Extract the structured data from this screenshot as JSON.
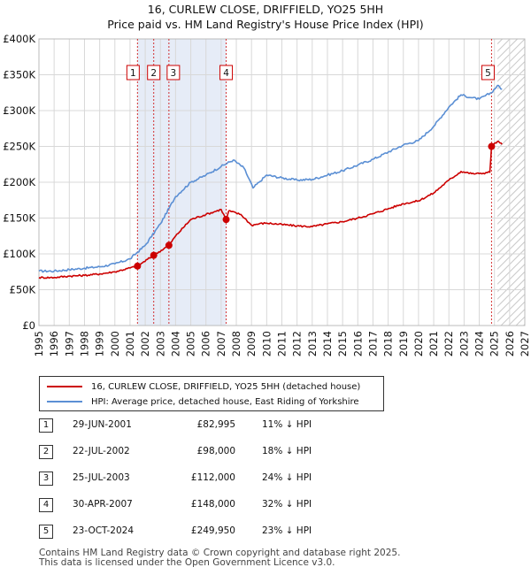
{
  "title_line1": "16, CURLEW CLOSE, DRIFFIELD, YO25 5HH",
  "title_line2": "Price paid vs. HM Land Registry's House Price Index (HPI)",
  "legend": {
    "red_label": "16, CURLEW CLOSE, DRIFFIELD, YO25 5HH (detached house)",
    "blue_label": "HPI: Average price, detached house, East Riding of Yorkshire"
  },
  "colors": {
    "red": "#cc0000",
    "blue": "#5b8fd4",
    "band": "#e6ecf7",
    "hatch": "#c8c8c8",
    "grid": "#d8d8d8"
  },
  "sales": [
    {
      "num": "1",
      "date": "29-JUN-2001",
      "price": "£82,995",
      "pct": "11% ↓ HPI"
    },
    {
      "num": "2",
      "date": "22-JUL-2002",
      "price": "£98,000",
      "pct": "18% ↓ HPI"
    },
    {
      "num": "3",
      "date": "25-JUL-2003",
      "price": "£112,000",
      "pct": "24% ↓ HPI"
    },
    {
      "num": "4",
      "date": "30-APR-2007",
      "price": "£148,000",
      "pct": "32% ↓ HPI"
    },
    {
      "num": "5",
      "date": "23-OCT-2024",
      "price": "£249,950",
      "pct": "23% ↓ HPI"
    }
  ],
  "footer_line1": "Contains HM Land Registry data © Crown copyright and database right 2025.",
  "footer_line2": "This data is licensed under the Open Government Licence v3.0.",
  "chart_data": {
    "type": "line",
    "title": "16, CURLEW CLOSE, DRIFFIELD, YO25 5HH — Price paid vs. HM Land Registry's House Price Index (HPI)",
    "xlim": [
      1995,
      2027
    ],
    "ylim": [
      0,
      400000
    ],
    "x_ticks": [
      1995,
      1996,
      1997,
      1998,
      1999,
      2000,
      2001,
      2002,
      2003,
      2004,
      2005,
      2006,
      2007,
      2008,
      2009,
      2010,
      2011,
      2012,
      2013,
      2014,
      2015,
      2016,
      2017,
      2018,
      2019,
      2020,
      2021,
      2022,
      2023,
      2024,
      2025,
      2026,
      2027
    ],
    "y_ticks": [
      0,
      50000,
      100000,
      150000,
      200000,
      250000,
      300000,
      350000,
      400000
    ],
    "y_tick_labels": [
      "£0",
      "£50K",
      "£100K",
      "£150K",
      "£200K",
      "£250K",
      "£300K",
      "£350K",
      "£400K"
    ],
    "shaded_ranges": [
      [
        2001.49,
        2007.33
      ]
    ],
    "hatched_from": 2025.2,
    "sale_points": [
      {
        "label": "1",
        "x": 2001.49,
        "y": 82995
      },
      {
        "label": "2",
        "x": 2002.56,
        "y": 98000
      },
      {
        "label": "3",
        "x": 2003.56,
        "y": 112000
      },
      {
        "label": "4",
        "x": 2007.33,
        "y": 148000
      },
      {
        "label": "5",
        "x": 2024.81,
        "y": 249950
      }
    ],
    "series": [
      {
        "name": "HPI: Average price, detached house, East Riding of Yorkshire",
        "color": "#5b8fd4",
        "points": [
          [
            1995,
            76000
          ],
          [
            1996,
            76000
          ],
          [
            1997,
            78000
          ],
          [
            1998,
            80000
          ],
          [
            1999,
            82000
          ],
          [
            2000,
            86000
          ],
          [
            2001,
            93000
          ],
          [
            2002,
            112000
          ],
          [
            2003,
            142000
          ],
          [
            2004,
            180000
          ],
          [
            2005,
            200000
          ],
          [
            2006,
            210000
          ],
          [
            2007,
            222000
          ],
          [
            2007.8,
            231000
          ],
          [
            2008.5,
            220000
          ],
          [
            2009.1,
            192000
          ],
          [
            2009.5,
            200000
          ],
          [
            2010,
            210000
          ],
          [
            2011,
            206000
          ],
          [
            2012,
            203000
          ],
          [
            2013,
            204000
          ],
          [
            2014,
            210000
          ],
          [
            2015,
            216000
          ],
          [
            2016,
            224000
          ],
          [
            2017,
            232000
          ],
          [
            2018,
            242000
          ],
          [
            2019,
            252000
          ],
          [
            2020,
            258000
          ],
          [
            2021,
            278000
          ],
          [
            2022,
            305000
          ],
          [
            2022.8,
            322000
          ],
          [
            2023.5,
            318000
          ],
          [
            2024,
            316000
          ],
          [
            2024.8,
            325000
          ],
          [
            2025.2,
            335000
          ],
          [
            2025.5,
            330000
          ]
        ]
      },
      {
        "name": "16, CURLEW CLOSE, DRIFFIELD, YO25 5HH (detached house)",
        "color": "#cc0000",
        "points": [
          [
            1995,
            67000
          ],
          [
            1996,
            67000
          ],
          [
            1997,
            69000
          ],
          [
            1998,
            70000
          ],
          [
            1999,
            72000
          ],
          [
            2000,
            75000
          ],
          [
            2001.49,
            82995
          ],
          [
            2002.56,
            98000
          ],
          [
            2003.56,
            112000
          ],
          [
            2004,
            125000
          ],
          [
            2005,
            148000
          ],
          [
            2006,
            155000
          ],
          [
            2007,
            162000
          ],
          [
            2007.33,
            148000
          ],
          [
            2007.5,
            160000
          ],
          [
            2008.3,
            155000
          ],
          [
            2009,
            140000
          ],
          [
            2009.5,
            142000
          ],
          [
            2010,
            143000
          ],
          [
            2011,
            141000
          ],
          [
            2012,
            139000
          ],
          [
            2013,
            138000
          ],
          [
            2014,
            142000
          ],
          [
            2015,
            145000
          ],
          [
            2016,
            150000
          ],
          [
            2017,
            156000
          ],
          [
            2018,
            163000
          ],
          [
            2019,
            170000
          ],
          [
            2020,
            174000
          ],
          [
            2021,
            185000
          ],
          [
            2022,
            203000
          ],
          [
            2022.8,
            215000
          ],
          [
            2023.5,
            212000
          ],
          [
            2024,
            212000
          ],
          [
            2024.7,
            214000
          ],
          [
            2024.81,
            249950
          ],
          [
            2025.2,
            257000
          ],
          [
            2025.5,
            253000
          ]
        ]
      }
    ]
  }
}
